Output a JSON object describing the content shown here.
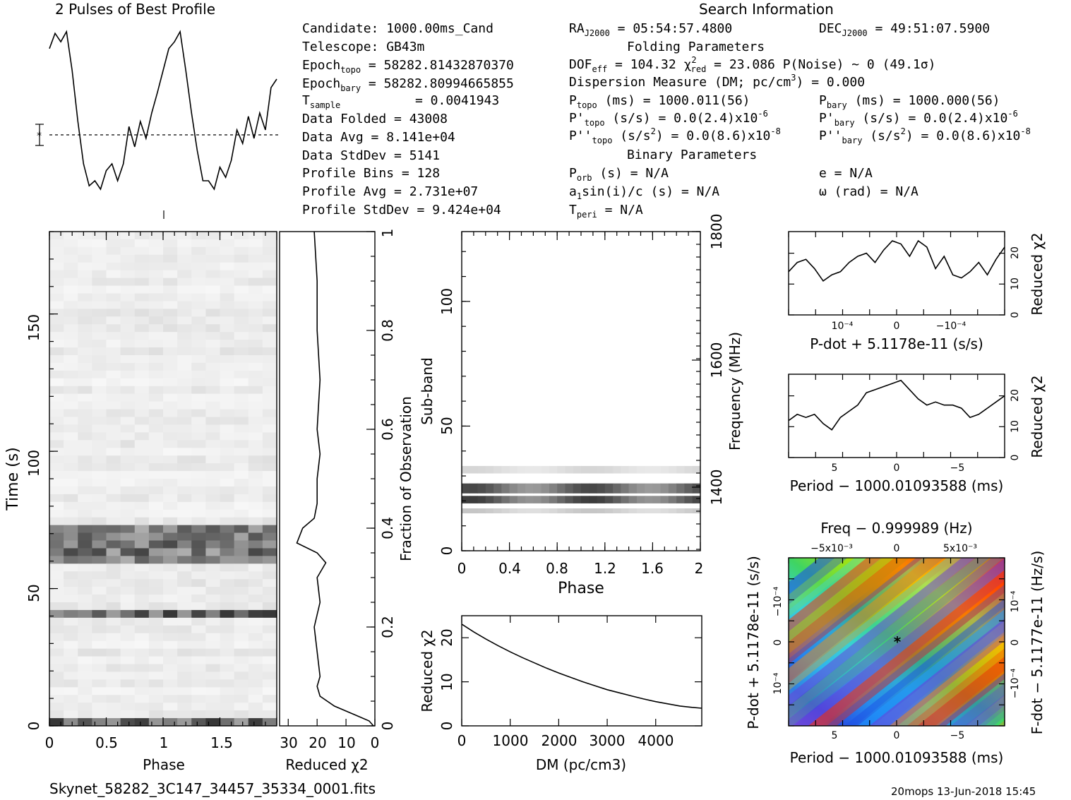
{
  "header": {
    "profile_title": "2 Pulses of Best Profile",
    "search_title": "Search Information",
    "folding_title": "Folding Parameters",
    "binary_title": "Binary Parameters"
  },
  "info": {
    "candidate": "Candidate:  1000.00ms_Cand",
    "telescope": "Telescope:  GB43m",
    "epoch_topo": "Epoch",
    "epoch_topo_sub": "topo",
    "epoch_topo_val": " = 58282.81432870370",
    "epoch_bary": "Epoch",
    "epoch_bary_sub": "bary",
    "epoch_bary_val": " = 58282.80994665855",
    "tsample": "T",
    "tsample_sub": "sample",
    "tsample_val": "=  0.0041943",
    "data_folded": "Data Folded    =  43008",
    "data_avg": "Data Avg       =  8.141e+04",
    "data_std": "Data StdDev    =  5141",
    "profile_bins": "Profile Bins   =  128",
    "profile_avg": "Profile Avg    =  2.731e+07",
    "profile_std": "Profile StdDev =  9.424e+04",
    "ra": "RA",
    "ra_sub": "J2000",
    "ra_val": " = 05:54:57.4800",
    "dec": "DEC",
    "dec_sub": "J2000",
    "dec_val": " = 49:51:07.5900",
    "dof": "DOF",
    "dof_sub": "eff",
    "dof_val": " = 104.32  χ",
    "chi_sup": "2",
    "chi_sub": "red",
    "chi_val": " = 23.086  P(Noise) ~ 0   (49.1σ)",
    "dm_line": "Dispersion Measure (DM; pc/cm",
    "dm_sup": "3",
    "dm_val": ") = 0.000",
    "ptopo": "P",
    "ptopo_sub": "topo",
    "ptopo_val": " (ms) =  1000.011(56)",
    "pdtopo": "P'",
    "pdtopo_sub": "topo",
    "pdtopo_val": " (s/s) = 0.0(2.4)x10",
    "pdtopo_exp": "-6",
    "pddtopo": "P''",
    "pddtopo_sub": "topo",
    "pddtopo_val": " (s/s",
    "pddtopo_sup": "2",
    "pddtopo_val2": ") = 0.0(8.6)x10",
    "pddtopo_exp": "-8",
    "pbary": "P",
    "pbary_sub": "bary",
    "pbary_val": " (ms) =  1000.000(56)",
    "pdbary": "P'",
    "pdbary_sub": "bary",
    "pdbary_val": " (s/s) = 0.0(2.4)x10",
    "pdbary_exp": "-6",
    "pddbary": "P''",
    "pddbary_sub": "bary",
    "pddbary_val": " (s/s",
    "pddbary_sup": "2",
    "pddbary_val2": ") = 0.0(8.6)x10",
    "pddbary_exp": "-8",
    "porb": "P",
    "porb_sub": "orb",
    "porb_val": " (s) = N/A",
    "a1sini": "a",
    "a1sini_sub": "1",
    "a1sini_val": "sin(i)/c (s) = N/A",
    "tperi": "T",
    "tperi_sub": "peri",
    "tperi_val": " = N/A",
    "ecc": "e = N/A",
    "omega": "ω (rad) = N/A"
  },
  "footer": {
    "filename": "Skynet_58282_3C147_34457_35334_0001.fits",
    "stamp": "20mops 13-Jun-2018 15:45"
  },
  "chart_data": [
    {
      "type": "line",
      "name": "profile",
      "title": "2 Pulses of Best Profile",
      "x": [
        0.0,
        0.05,
        0.1,
        0.15,
        0.2,
        0.25,
        0.3,
        0.35,
        0.4,
        0.45,
        0.5,
        0.55,
        0.6,
        0.65,
        0.7,
        0.75,
        0.8,
        0.85,
        0.9,
        0.95,
        1.0,
        1.05,
        1.1,
        1.15,
        1.2,
        1.25,
        1.3,
        1.35,
        1.4,
        1.45,
        1.5,
        1.55,
        1.6,
        1.65,
        1.7,
        1.75,
        1.8,
        1.85,
        1.9,
        1.95,
        2.0
      ],
      "values": [
        0.88,
        0.97,
        0.92,
        0.98,
        0.75,
        0.45,
        0.2,
        0.07,
        0.1,
        0.05,
        0.16,
        0.2,
        0.1,
        0.2,
        0.42,
        0.3,
        0.45,
        0.35,
        0.5,
        0.62,
        0.75,
        0.88,
        0.92,
        0.98,
        0.75,
        0.5,
        0.28,
        0.1,
        0.1,
        0.05,
        0.18,
        0.12,
        0.22,
        0.4,
        0.32,
        0.48,
        0.35,
        0.5,
        0.4,
        0.65,
        0.7
      ]
    },
    {
      "type": "heatmap",
      "name": "time-phase",
      "xlabel": "Phase",
      "ylabel": "Time (s)",
      "xlim": [
        0,
        2
      ],
      "ylim": [
        0,
        180
      ],
      "x_ticks": [
        "0",
        "0.5",
        "1",
        "1.5"
      ],
      "y_ticks": [
        "0",
        "50",
        "100",
        "150"
      ],
      "right_axis_label": "Fraction of Observation",
      "right_ticks": [
        "0",
        "0.2",
        "0.4",
        "0.6",
        "0.8",
        "1"
      ],
      "dark_time_bands_s": [
        [
          0,
          3
        ],
        [
          38,
          42
        ],
        [
          60,
          73
        ]
      ]
    },
    {
      "type": "line",
      "name": "time-chi2",
      "xlabel": "Reduced χ2",
      "x_ticks": [
        "30",
        "20",
        "10",
        "0"
      ],
      "xlim": [
        30,
        0
      ],
      "y_fraction": [
        0.0,
        0.01,
        0.02,
        0.04,
        0.06,
        0.08,
        0.1,
        0.15,
        0.2,
        0.25,
        0.3,
        0.33,
        0.35,
        0.37,
        0.4,
        0.42,
        0.45,
        0.5,
        0.55,
        0.6,
        0.7,
        0.8,
        0.9,
        1.0
      ],
      "chi2": [
        0.5,
        2,
        6,
        14,
        19,
        20,
        19,
        20,
        21,
        19,
        20,
        17,
        20,
        27,
        25,
        21,
        20,
        20,
        19,
        20,
        19,
        20,
        20,
        21
      ]
    },
    {
      "type": "heatmap",
      "name": "subband-phase",
      "xlabel": "Phase",
      "ylabel": "Sub-band",
      "right_axis_label": "Frequency (MHz)",
      "xlim": [
        0,
        2
      ],
      "ylim": [
        0,
        128
      ],
      "x_ticks": [
        "0",
        "0.4",
        "0.8",
        "1.2",
        "1.6",
        "2"
      ],
      "y_ticks": [
        "0",
        "50",
        "100"
      ],
      "right_ticks": [
        "1400",
        "1600",
        "1800"
      ],
      "active_subbands": [
        [
          15,
          17
        ],
        [
          19,
          22
        ],
        [
          23,
          27
        ],
        [
          31,
          34
        ]
      ]
    },
    {
      "type": "line",
      "name": "dm-chi2",
      "xlabel": "DM (pc/cm3)",
      "ylabel": "Reduced χ2",
      "x": [
        0,
        250,
        500,
        750,
        1000,
        1250,
        1500,
        1750,
        2000,
        2250,
        2500,
        2750,
        3000,
        3250,
        3500,
        3750,
        4000,
        4250,
        4500,
        4750,
        4950
      ],
      "values": [
        23.1,
        21.3,
        19.7,
        18.2,
        16.8,
        15.5,
        14.3,
        13.1,
        12.0,
        11.0,
        10.0,
        9.1,
        8.2,
        7.5,
        6.8,
        6.1,
        5.5,
        5.0,
        4.5,
        4.2,
        4.0
      ],
      "xlim": [
        0,
        4950
      ],
      "ylim": [
        0,
        25
      ],
      "x_ticks": [
        "0",
        "1000",
        "2000",
        "3000",
        "4000"
      ],
      "y_ticks": [
        "0",
        "10",
        "20"
      ]
    },
    {
      "type": "line",
      "name": "pdot-chi2",
      "xlabel": "P-dot + 5.1178e-11 (s/s)",
      "ylabel": "Reduced χ2",
      "x_ticks": [
        "10⁻⁴",
        "0",
        "−10⁻⁴"
      ],
      "y_ticks": [
        "0",
        "10",
        "20"
      ],
      "ylim": [
        0,
        27
      ],
      "x_fraction": [
        0.0,
        0.04,
        0.08,
        0.12,
        0.16,
        0.2,
        0.24,
        0.28,
        0.32,
        0.36,
        0.4,
        0.44,
        0.48,
        0.52,
        0.56,
        0.6,
        0.64,
        0.68,
        0.72,
        0.76,
        0.8,
        0.84,
        0.88,
        0.92,
        0.96,
        1.0
      ],
      "values": [
        14,
        17,
        18,
        15,
        11,
        13,
        14,
        17,
        19,
        20,
        17,
        21,
        24,
        23,
        19,
        24,
        22,
        15,
        19,
        13,
        12,
        14,
        17,
        13,
        18,
        22
      ]
    },
    {
      "type": "line",
      "name": "period-chi2",
      "xlabel": "Period − 1000.01093588 (ms)",
      "ylabel": "Reduced χ2",
      "x_ticks": [
        "5",
        "0",
        "−5"
      ],
      "y_ticks": [
        "0",
        "10",
        "20"
      ],
      "ylim": [
        0,
        27
      ],
      "x_fraction": [
        0.0,
        0.04,
        0.08,
        0.12,
        0.16,
        0.2,
        0.24,
        0.28,
        0.32,
        0.36,
        0.4,
        0.44,
        0.48,
        0.52,
        0.56,
        0.6,
        0.64,
        0.68,
        0.72,
        0.76,
        0.8,
        0.84,
        0.88,
        0.92,
        0.96,
        1.0
      ],
      "values": [
        12,
        14,
        13,
        14,
        11,
        9,
        13,
        15,
        17,
        21,
        22,
        23,
        24,
        25,
        22,
        19,
        17,
        18,
        17,
        17,
        16,
        13,
        14,
        16,
        18,
        20
      ]
    },
    {
      "type": "heatmap",
      "name": "period-pdot",
      "title": "Freq − 0.999989 (Hz)",
      "xlabel": "Period − 1000.01093588 (ms)",
      "ylabel": "P-dot + 5.1178e-11 (s/s)",
      "right_axis_label": "F-dot − 5.1177e-11 (Hz/s)",
      "x_ticks": [
        "5",
        "0",
        "−5"
      ],
      "top_ticks": [
        "−5x10⁻³",
        "0",
        "5x10⁻³"
      ],
      "y_ticks": [
        "10⁻⁴",
        "0",
        "−10⁻⁴"
      ],
      "right_ticks": [
        "−10⁻⁴",
        "0",
        "10⁻⁴"
      ],
      "colors": [
        "#6a3fd9",
        "#1e50e6",
        "#1ea0ff",
        "#3ad6e0",
        "#42d46a",
        "#9ae31a",
        "#f2e600",
        "#ff8c00",
        "#ff2a00"
      ]
    }
  ]
}
